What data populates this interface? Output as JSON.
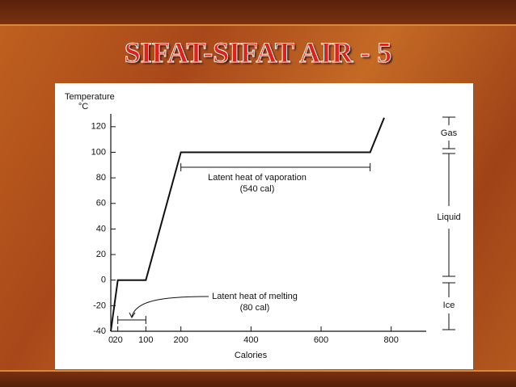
{
  "slide_title": "SIFAT-SIFAT AIR - 5",
  "chart_data": {
    "type": "line",
    "y_label": "Temperature",
    "y_unit": "°C",
    "x_label": "Calories",
    "x": [
      0,
      20,
      100,
      200,
      740,
      780
    ],
    "series": [
      {
        "color": "#111111",
        "values": [
          -40,
          0,
          0,
          100,
          100,
          127
        ]
      }
    ],
    "xlim": [
      0,
      900
    ],
    "ylim": [
      -40,
      130
    ],
    "xticks": [
      0,
      20,
      100,
      200,
      400,
      600,
      800
    ],
    "yticks": [
      -40,
      -20,
      0,
      20,
      40,
      60,
      80,
      100,
      120
    ],
    "annotations": [
      "Latent heat of vaporation",
      "(540 cal)",
      "Latent heat of melting",
      "(80 cal)"
    ],
    "phase_labels": [
      "Gas",
      "Liquid",
      "Ice"
    ]
  }
}
